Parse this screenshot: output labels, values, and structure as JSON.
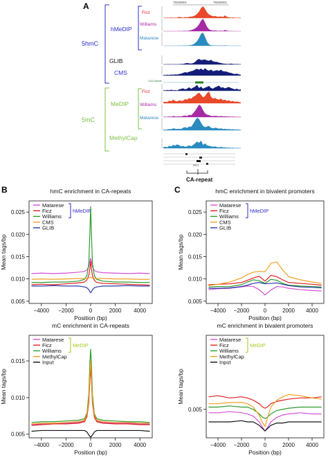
{
  "panel_a": {
    "letter": "A",
    "coord_left": "78250001",
    "coord_right": "78260001",
    "group_5hmc": "5hmC",
    "group_5mc": "5mC",
    "hmedip": "hMeDIP",
    "glib": "GLIB",
    "cms": "CMS",
    "medip": "MeDIP",
    "methylcap": "MethylCap",
    "ficz": "Ficz",
    "williams": "Williams",
    "matarese": "Matarese",
    "cpg_label": "CpG Islands",
    "ca_repeat": "CA-repeat",
    "track_ficz_1": [
      0.02,
      0.02,
      0.03,
      0.02,
      0.05,
      0.02,
      0.03,
      0.04,
      0.1,
      0.06,
      0.04,
      0.08,
      0.05,
      0.1,
      0.12,
      0.15,
      0.22,
      0.35,
      0.55,
      0.85,
      1.0,
      0.78,
      0.48,
      0.3,
      0.22,
      0.15,
      0.18,
      0.12,
      0.1,
      0.14,
      0.08,
      0.22,
      0.1,
      0.06,
      0.04,
      0.05,
      0.03,
      0.02,
      0.03,
      0.02
    ],
    "track_williams_1": [
      0,
      0,
      0,
      0,
      0.01,
      0,
      0.01,
      0,
      0.02,
      0.01,
      0.02,
      0.03,
      0.02,
      0.05,
      0.08,
      0.14,
      0.22,
      0.35,
      0.55,
      0.85,
      1.0,
      0.7,
      0.35,
      0.15,
      0.08,
      0.05,
      0.06,
      0.04,
      0.03,
      0.05,
      0.02,
      0.1,
      0.04,
      0.02,
      0.01,
      0.01,
      0,
      0,
      0,
      0
    ],
    "track_matarese_1": [
      0,
      0,
      0,
      0,
      0,
      0,
      0,
      0,
      0.01,
      0,
      0.01,
      0.02,
      0.01,
      0.03,
      0.05,
      0.1,
      0.2,
      0.35,
      0.6,
      0.9,
      1.0,
      0.68,
      0.3,
      0.1,
      0.04,
      0.02,
      0.02,
      0.01,
      0.01,
      0.02,
      0.01,
      0.03,
      0.01,
      0,
      0,
      0,
      0,
      0,
      0,
      0
    ],
    "track_glib": [
      0.02,
      0.02,
      0.02,
      0.03,
      0.02,
      0.02,
      0.03,
      0.02,
      0.04,
      0.05,
      0.06,
      0.12,
      0.16,
      0.12,
      0.1,
      0.14,
      0.28,
      0.5,
      0.62,
      0.48,
      0.52,
      0.55,
      0.45,
      0.4,
      0.52,
      0.35,
      0.3,
      0.28,
      0.2,
      0.15,
      0.1,
      0.08,
      0.06,
      0.05,
      0.1,
      0.06,
      0.04,
      0.05,
      0.03,
      0.04
    ],
    "track_cms": [
      0.06,
      0.05,
      0.08,
      0.06,
      0.1,
      0.08,
      0.12,
      0.1,
      0.15,
      0.2,
      0.28,
      0.35,
      0.3,
      0.38,
      0.45,
      0.5,
      0.62,
      0.7,
      0.6,
      0.72,
      0.55,
      0.75,
      0.58,
      0.5,
      0.62,
      0.45,
      0.5,
      0.55,
      0.48,
      0.6,
      0.45,
      0.42,
      0.4,
      0.3,
      0.28,
      0.2,
      0.15,
      0.2,
      0.12,
      0.08
    ],
    "track_mid": [
      0.1,
      0.05,
      0.12,
      0.08,
      0.15,
      0.08,
      0.1,
      0.05,
      0.2,
      0.28,
      0.35,
      0.2,
      0.3,
      0.5,
      0.28,
      0.45,
      0.6,
      0.85,
      0.4,
      0.6,
      0.3,
      0.45,
      0.55,
      0.7,
      0.4,
      0.3,
      0.5,
      0.6,
      0.75,
      0.45,
      0.5,
      0.35,
      0.45,
      0.55,
      0.4,
      0.3,
      0.2,
      0.3,
      0.15,
      0.2
    ],
    "track_ficz_2": [
      0.1,
      0.12,
      0.1,
      0.22,
      0.18,
      0.3,
      0.2,
      0.15,
      0.25,
      0.2,
      0.22,
      0.35,
      0.3,
      0.45,
      0.38,
      0.55,
      0.62,
      0.8,
      0.9,
      0.72,
      0.5,
      0.6,
      0.85,
      1.0,
      0.55,
      0.4,
      0.45,
      0.35,
      0.3,
      0.4,
      0.25,
      0.3,
      0.2,
      0.25,
      0.15,
      0.2,
      0.12,
      0.15,
      0.1,
      0.08
    ],
    "track_williams_2": [
      0.02,
      0.03,
      0.02,
      0.05,
      0.03,
      0.08,
      0.05,
      0.04,
      0.06,
      0.05,
      0.1,
      0.12,
      0.08,
      0.18,
      0.15,
      0.3,
      0.5,
      0.75,
      1.0,
      0.88,
      0.55,
      0.3,
      0.2,
      0.15,
      0.1,
      0.08,
      0.1,
      0.08,
      0.06,
      0.08,
      0.05,
      0.06,
      0.04,
      0.05,
      0.03,
      0.04,
      0.02,
      0.03,
      0.02,
      0.02
    ],
    "track_matarese_2": [
      0.05,
      0.04,
      0.06,
      0.1,
      0.08,
      0.15,
      0.12,
      0.1,
      0.12,
      0.1,
      0.2,
      0.25,
      0.18,
      0.3,
      0.28,
      0.5,
      0.78,
      1.0,
      0.9,
      0.6,
      0.35,
      0.25,
      0.3,
      0.35,
      0.2,
      0.15,
      0.2,
      0.18,
      0.12,
      0.15,
      0.1,
      0.12,
      0.08,
      0.1,
      0.06,
      0.08,
      0.05,
      0.06,
      0.04,
      0.04
    ],
    "track_methylcap": [
      0.12,
      0.15,
      0.1,
      0.25,
      0.2,
      0.35,
      0.28,
      0.4,
      0.3,
      0.2,
      0.25,
      0.15,
      0.2,
      0.3,
      0.2,
      0.35,
      0.5,
      0.7,
      0.55,
      0.8,
      0.35,
      0.5,
      0.3,
      0.25,
      0.2,
      0.15,
      0.2,
      0.12,
      0.1,
      0.15,
      0.08,
      0.1,
      0.05,
      0.08,
      0.04,
      0.05,
      0.03,
      0.04,
      0.02,
      0.02
    ]
  },
  "panel_b_letter": "B",
  "panel_c_letter": "C",
  "chart_data": [
    {
      "type": "line",
      "panel": "B",
      "title": "hmC enrichment in CA-repeats",
      "xlabel": "Position (bp)",
      "ylabel": "Mean tags/bp",
      "xlim": [
        -5000,
        5000
      ],
      "ylim": [
        0.0045,
        0.0275
      ],
      "xticks": [
        -4000,
        -2000,
        0,
        2000,
        4000
      ],
      "xtick_labels": [
        "−4000",
        "−2000",
        "0",
        "2000",
        "4000"
      ],
      "yticks": [
        0.005,
        0.01,
        0.015,
        0.02,
        0.025
      ],
      "ytick_labels": [
        "0.005",
        "0.010",
        "0.015",
        "0.020",
        "0.025"
      ],
      "legend_position": "top-left",
      "legend_bracket": "hMeDIP",
      "legend_bracket_count": 3,
      "legend_bracket_color": "#2d2ec8",
      "x": [
        -4800,
        -4000,
        -3000,
        -2000,
        -1000,
        -500,
        -300,
        -150,
        -60,
        0,
        60,
        150,
        300,
        500,
        1000,
        2000,
        3000,
        4000,
        4800
      ],
      "series": [
        {
          "name": "Matarese",
          "color": "#d64fd6",
          "values": [
            0.0112,
            0.0113,
            0.0112,
            0.0113,
            0.0115,
            0.0117,
            0.012,
            0.0128,
            0.014,
            0.0146,
            0.0139,
            0.0127,
            0.0119,
            0.0116,
            0.0114,
            0.0113,
            0.0112,
            0.0113,
            0.0112
          ]
        },
        {
          "name": "Ficz",
          "color": "#e02020",
          "values": [
            0.0087,
            0.0088,
            0.0087,
            0.0089,
            0.0091,
            0.0093,
            0.0098,
            0.0108,
            0.0124,
            0.0139,
            0.0123,
            0.0107,
            0.0097,
            0.0092,
            0.009,
            0.0089,
            0.0088,
            0.0087,
            0.0086
          ]
        },
        {
          "name": "Williams",
          "color": "#2e9b2e",
          "values": [
            0.0092,
            0.0092,
            0.0093,
            0.0093,
            0.0095,
            0.0099,
            0.0108,
            0.0135,
            0.0205,
            0.0262,
            0.0203,
            0.0133,
            0.0107,
            0.0099,
            0.0095,
            0.0093,
            0.0093,
            0.0092,
            0.0092
          ]
        },
        {
          "name": "CMS",
          "color": "#f0a020",
          "values": [
            0.0099,
            0.01,
            0.0099,
            0.01,
            0.0101,
            0.0101,
            0.0101,
            0.0102,
            0.0103,
            0.0104,
            0.0103,
            0.0102,
            0.0101,
            0.0101,
            0.0101,
            0.01,
            0.01,
            0.0099,
            0.0099
          ]
        },
        {
          "name": "GLIB",
          "color": "#2a3aa8",
          "values": [
            0.0084,
            0.0084,
            0.0085,
            0.0084,
            0.0084,
            0.0082,
            0.008,
            0.0076,
            0.0071,
            0.0069,
            0.0071,
            0.0076,
            0.008,
            0.0082,
            0.0084,
            0.0084,
            0.0085,
            0.0084,
            0.0084
          ]
        }
      ]
    },
    {
      "type": "line",
      "panel": "C",
      "title": "hmC enrichment in bivalent promoters",
      "xlabel": "Position (bp)",
      "ylabel": "Mean tags/bp",
      "xlim": [
        -5000,
        5000
      ],
      "ylim": [
        0.0045,
        0.0275
      ],
      "xticks": [
        -4000,
        -2000,
        0,
        2000,
        4000
      ],
      "xtick_labels": [
        "−4000",
        "−2000",
        "0",
        "2000",
        "4000"
      ],
      "yticks": [
        0.005,
        0.01,
        0.015,
        0.02,
        0.025
      ],
      "ytick_labels": [
        "0.005",
        "0.010",
        "0.015",
        "0.020",
        "0.025"
      ],
      "legend_position": "top-left",
      "legend_bracket": "hMeDIP",
      "legend_bracket_count": 3,
      "legend_bracket_color": "#2d2ec8",
      "x": [
        -4800,
        -4000,
        -3000,
        -2000,
        -1500,
        -1000,
        -500,
        0,
        500,
        1000,
        1500,
        2000,
        3000,
        4000,
        4800
      ],
      "series": [
        {
          "name": "Matarese",
          "color": "#d64fd6",
          "values": [
            0.0076,
            0.0078,
            0.0079,
            0.0082,
            0.0084,
            0.0083,
            0.0076,
            0.0064,
            0.0075,
            0.0083,
            0.0082,
            0.0079,
            0.0076,
            0.0074,
            0.0073
          ]
        },
        {
          "name": "Ficz",
          "color": "#e02020",
          "values": [
            0.0087,
            0.0088,
            0.0089,
            0.0092,
            0.0097,
            0.0102,
            0.0106,
            0.0095,
            0.0108,
            0.0105,
            0.0098,
            0.0092,
            0.009,
            0.0088,
            0.0086
          ]
        },
        {
          "name": "Williams",
          "color": "#2e9b2e",
          "values": [
            0.0082,
            0.0083,
            0.0083,
            0.0087,
            0.0093,
            0.0098,
            0.0096,
            0.009,
            0.0099,
            0.0097,
            0.009,
            0.0086,
            0.0084,
            0.0083,
            0.0082
          ]
        },
        {
          "name": "CMS",
          "color": "#f0a020",
          "values": [
            0.0085,
            0.0088,
            0.0093,
            0.0102,
            0.011,
            0.0115,
            0.0117,
            0.0116,
            0.0135,
            0.0138,
            0.012,
            0.0105,
            0.0098,
            0.0093,
            0.009
          ]
        },
        {
          "name": "GLIB",
          "color": "#2a3aa8",
          "values": [
            0.0079,
            0.0079,
            0.008,
            0.0083,
            0.0086,
            0.009,
            0.0092,
            0.0089,
            0.009,
            0.0091,
            0.0088,
            0.0085,
            0.0082,
            0.0081,
            0.008
          ]
        }
      ]
    },
    {
      "type": "line",
      "panel": "B",
      "title": "mC enrichment in CA-repeats",
      "xlabel": "Position (bp)",
      "ylabel": "Mean tags/bp",
      "xlim": [
        -5000,
        5000
      ],
      "ylim": [
        0.0045,
        0.0185
      ],
      "xticks": [
        -4000,
        -2000,
        0,
        2000,
        4000
      ],
      "xtick_labels": [
        "−4000",
        "−2000",
        "0",
        "2000",
        "4000"
      ],
      "yticks": [
        0.005,
        0.01,
        0.015
      ],
      "ytick_labels": [
        "0.005",
        "0.010",
        "0.015"
      ],
      "legend_position": "top-left",
      "legend_bracket": "MeDIP",
      "legend_bracket_count": 3,
      "legend_bracket_color": "#a6c91e",
      "x": [
        -4800,
        -4000,
        -3000,
        -2000,
        -1000,
        -500,
        -300,
        -150,
        -60,
        0,
        60,
        150,
        300,
        500,
        1000,
        2000,
        3000,
        4000,
        4800
      ],
      "series": [
        {
          "name": "Matarese",
          "color": "#d64fd6",
          "values": [
            0.0063,
            0.0064,
            0.0065,
            0.0065,
            0.0066,
            0.0068,
            0.0075,
            0.0095,
            0.0128,
            0.0148,
            0.0127,
            0.0094,
            0.0074,
            0.0068,
            0.0066,
            0.0065,
            0.0065,
            0.0064,
            0.0064
          ]
        },
        {
          "name": "Ficz",
          "color": "#e02020",
          "values": [
            0.0062,
            0.0063,
            0.0064,
            0.0064,
            0.0065,
            0.0067,
            0.0074,
            0.0093,
            0.0125,
            0.0142,
            0.0124,
            0.0092,
            0.0073,
            0.0067,
            0.0065,
            0.0064,
            0.0064,
            0.0063,
            0.0063
          ]
        },
        {
          "name": "Williams",
          "color": "#2e9b2e",
          "values": [
            0.0066,
            0.0067,
            0.0067,
            0.0068,
            0.0069,
            0.0071,
            0.0079,
            0.0105,
            0.0148,
            0.0166,
            0.0147,
            0.0104,
            0.0078,
            0.0071,
            0.0069,
            0.0068,
            0.0067,
            0.0067,
            0.0066
          ]
        },
        {
          "name": "MethylCap",
          "color": "#f0a020",
          "values": [
            0.0064,
            0.0065,
            0.0065,
            0.0066,
            0.0067,
            0.0069,
            0.0077,
            0.0098,
            0.0133,
            0.015,
            0.0132,
            0.0097,
            0.0076,
            0.0069,
            0.0067,
            0.0066,
            0.0066,
            0.0065,
            0.0065
          ]
        },
        {
          "name": "Input",
          "color": "#111111",
          "values": [
            0.0054,
            0.0055,
            0.0055,
            0.0055,
            0.0055,
            0.0055,
            0.0053,
            0.0049,
            0.0047,
            0.0046,
            0.0047,
            0.0049,
            0.0053,
            0.0055,
            0.0055,
            0.0055,
            0.0055,
            0.0055,
            0.0054
          ]
        }
      ]
    },
    {
      "type": "line",
      "panel": "C",
      "title": "mC enrichment in bivalent promoters",
      "xlabel": "Position (bp)",
      "ylabel": "Mean tags/bp",
      "xlim": [
        -5000,
        5000
      ],
      "ylim": [
        0.0025,
        0.0115
      ],
      "xticks": [
        -4000,
        -2000,
        0,
        2000,
        4000
      ],
      "xtick_labels": [
        "−4000",
        "−2000",
        "0",
        "2000",
        "4000"
      ],
      "yticks": [
        0.005
      ],
      "ytick_labels": [
        "0.005"
      ],
      "legend_position": "top-left",
      "legend_bracket": "MeDIP",
      "legend_bracket_count": 3,
      "legend_bracket_color": "#a6c91e",
      "x": [
        -4800,
        -4000,
        -3000,
        -2000,
        -1500,
        -1000,
        -500,
        -200,
        0,
        200,
        500,
        1000,
        1500,
        2000,
        3000,
        4000,
        4800
      ],
      "series": [
        {
          "name": "Matarese",
          "color": "#d64fd6",
          "values": [
            0.0047,
            0.0047,
            0.0048,
            0.0047,
            0.0046,
            0.0044,
            0.0039,
            0.0034,
            0.0031,
            0.0034,
            0.0039,
            0.0043,
            0.0045,
            0.0046,
            0.0047,
            0.0046,
            0.0046
          ]
        },
        {
          "name": "Ficz",
          "color": "#e02020",
          "values": [
            0.0061,
            0.0062,
            0.006,
            0.0061,
            0.006,
            0.0058,
            0.0055,
            0.0052,
            0.0051,
            0.0052,
            0.0055,
            0.0057,
            0.0058,
            0.0059,
            0.006,
            0.006,
            0.0061
          ]
        },
        {
          "name": "Williams",
          "color": "#2e9b2e",
          "values": [
            0.0052,
            0.0052,
            0.0053,
            0.0052,
            0.0052,
            0.005,
            0.0046,
            0.0043,
            0.0042,
            0.0043,
            0.0046,
            0.0049,
            0.005,
            0.0051,
            0.0052,
            0.0052,
            0.0052
          ]
        },
        {
          "name": "MethylCap",
          "color": "#f0a020",
          "values": [
            0.0055,
            0.0055,
            0.0056,
            0.0056,
            0.0055,
            0.0052,
            0.0045,
            0.0038,
            0.0035,
            0.0042,
            0.0052,
            0.0058,
            0.0061,
            0.0063,
            0.0062,
            0.006,
            0.0059
          ]
        },
        {
          "name": "Input",
          "color": "#111111",
          "values": [
            0.0039,
            0.0039,
            0.0039,
            0.004,
            0.0039,
            0.0039,
            0.0036,
            0.0033,
            0.0031,
            0.0033,
            0.0036,
            0.0038,
            0.0038,
            0.0039,
            0.0039,
            0.0039,
            0.0039
          ]
        }
      ]
    }
  ]
}
